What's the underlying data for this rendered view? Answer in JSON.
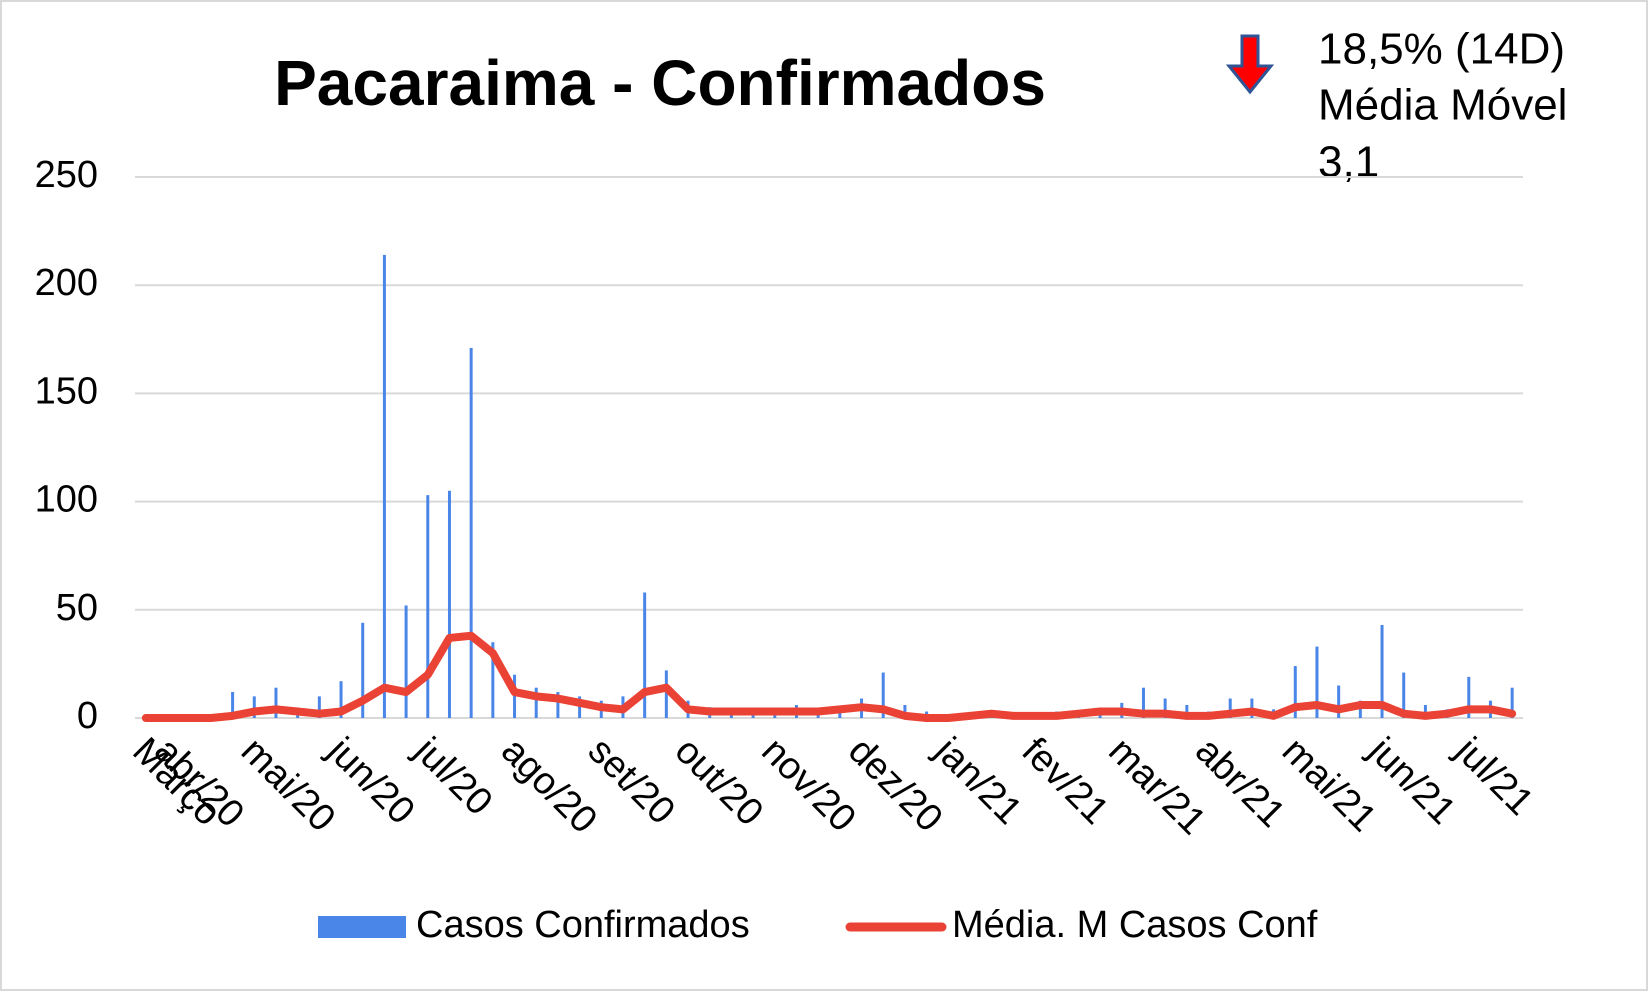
{
  "chart_data": {
    "type": "bar_line",
    "title": "Pacaraima - Confirmados",
    "annotations": [
      "18,5% (14D)",
      "Média Móvel",
      "3,1"
    ],
    "categories": [
      "Março",
      "abr/20",
      null,
      null,
      null,
      "mai/20",
      null,
      null,
      null,
      "jun/20",
      null,
      null,
      null,
      "jul/20",
      null,
      null,
      null,
      "ago/20",
      null,
      null,
      null,
      "set/20",
      null,
      null,
      null,
      "out/20",
      null,
      null,
      null,
      "nov/20",
      null,
      null,
      null,
      "dez/20",
      null,
      null,
      null,
      "jan/21",
      null,
      null,
      null,
      "fev/21",
      null,
      null,
      null,
      "mar/21",
      null,
      null,
      null,
      "abr/21",
      null,
      null,
      null,
      "mai/21",
      null,
      null,
      null,
      "jun/21",
      null,
      null,
      null,
      "jul/21",
      null,
      null
    ],
    "series": [
      {
        "name": "Casos Confirmados",
        "kind": "bar",
        "color": "#4a86e8",
        "values": [
          0,
          0,
          0,
          0,
          12,
          10,
          14,
          4,
          10,
          17,
          44,
          214,
          52,
          103,
          105,
          171,
          35,
          20,
          14,
          12,
          10,
          8,
          10,
          58,
          22,
          8,
          5,
          4,
          3,
          4,
          6,
          3,
          3,
          9,
          21,
          6,
          3,
          1,
          2,
          3,
          2,
          2,
          3,
          2,
          4,
          7,
          14,
          9,
          6,
          3,
          9,
          9,
          4,
          24,
          33,
          15,
          8,
          43,
          21,
          6,
          4,
          19,
          8,
          14
        ]
      },
      {
        "name": "Média. M Casos Conf",
        "kind": "line",
        "color": "#ea4335",
        "values": [
          0,
          0,
          0,
          0,
          1,
          3,
          4,
          3,
          2,
          3,
          8,
          14,
          12,
          20,
          37,
          38,
          30,
          12,
          10,
          9,
          7,
          5,
          4,
          12,
          14,
          4,
          3,
          3,
          3,
          3,
          3,
          3,
          4,
          5,
          4,
          1,
          0,
          0,
          1,
          2,
          1,
          1,
          1,
          2,
          3,
          3,
          2,
          2,
          1,
          1,
          2,
          3,
          1,
          5,
          6,
          4,
          6,
          6,
          2,
          1,
          2,
          4,
          4,
          2
        ]
      }
    ],
    "ylim": [
      0,
      250
    ],
    "yticks": [
      0,
      50,
      100,
      150,
      200,
      250
    ],
    "grid": true,
    "legend": "bottom"
  }
}
